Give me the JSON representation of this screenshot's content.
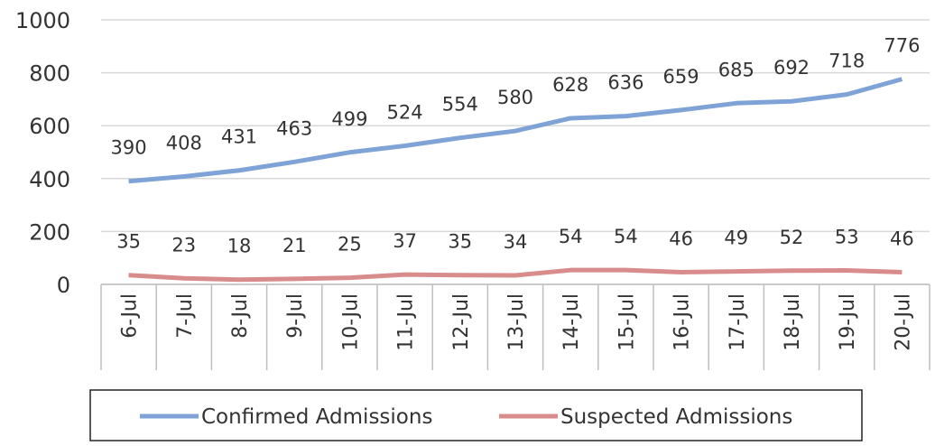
{
  "chart_data": {
    "type": "line",
    "categories": [
      "6-Jul",
      "7-Jul",
      "8-Jul",
      "9-Jul",
      "10-Jul",
      "11-Jul",
      "12-Jul",
      "13-Jul",
      "14-Jul",
      "15-Jul",
      "16-Jul",
      "17-Jul",
      "18-Jul",
      "19-Jul",
      "20-Jul"
    ],
    "series": [
      {
        "name": "Confirmed Admissions",
        "color": "#7fa3d6",
        "values": [
          390,
          408,
          431,
          463,
          499,
          524,
          554,
          580,
          628,
          636,
          659,
          685,
          692,
          718,
          776
        ]
      },
      {
        "name": "Suspected Admissions",
        "color": "#d98c8c",
        "values": [
          35,
          23,
          18,
          21,
          25,
          37,
          35,
          34,
          54,
          54,
          46,
          49,
          52,
          53,
          46
        ]
      }
    ],
    "ylim": [
      0,
      1000
    ],
    "yticks": [
      0,
      200,
      400,
      600,
      800,
      1000
    ],
    "grid": true,
    "legend": "bottom"
  }
}
